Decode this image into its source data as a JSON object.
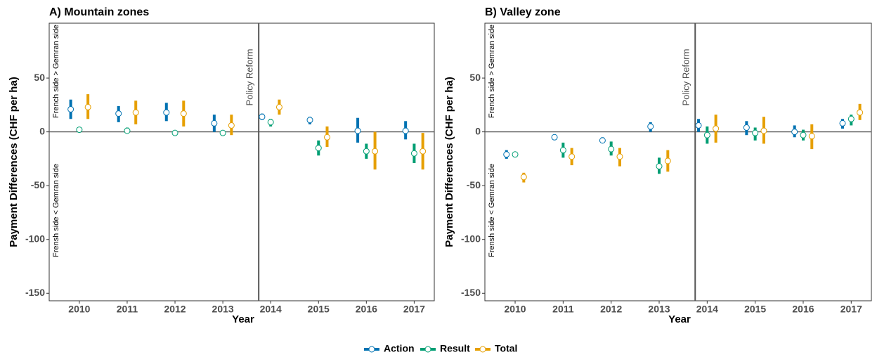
{
  "chart_data": [
    {
      "type": "pointrange",
      "title": "A) Mountain zones",
      "x_label": "Year",
      "y_label": "Payment Differences (CHF per ha)",
      "annotations": [
        "Policy Reform",
        "French side > Gemran side",
        "Frensh side < Gemran side"
      ],
      "categories": [
        "2010",
        "2011",
        "2012",
        "2013",
        "2014",
        "2015",
        "2016",
        "2017"
      ],
      "ylim": [
        -157,
        101
      ],
      "yticks": [
        -150,
        -100,
        -50,
        0,
        50
      ],
      "series": [
        {
          "name": "Action",
          "color": "#0072B2",
          "values": [
            21,
            17,
            18,
            8,
            14,
            11,
            1,
            1
          ],
          "lower": [
            12,
            9,
            10,
            0,
            11,
            7,
            -10,
            -7
          ],
          "upper": [
            30,
            24,
            27,
            16,
            17,
            14,
            13,
            10
          ]
        },
        {
          "name": "Result",
          "color": "#009E73",
          "values": [
            2,
            1,
            -1,
            -1,
            9,
            -15,
            -18,
            -20
          ],
          "lower": [
            1,
            -1,
            -3,
            -2,
            5,
            -22,
            -25,
            -29
          ],
          "upper": [
            4,
            4,
            1,
            1,
            12,
            -8,
            -11,
            -11
          ]
        },
        {
          "name": "Total",
          "color": "#E69F00",
          "values": [
            23,
            18,
            17,
            6,
            23,
            -5,
            -18,
            -18
          ],
          "lower": [
            12,
            7,
            5,
            -3,
            16,
            -14,
            -35,
            -35
          ],
          "upper": [
            35,
            29,
            29,
            16,
            30,
            5,
            0,
            -1
          ]
        }
      ]
    },
    {
      "type": "pointrange",
      "title": "B) Valley zone",
      "x_label": "Year",
      "y_label": "Payment Differences (CHF per ha)",
      "annotations": [
        "Policy Reform",
        "French side > Gemran side",
        "Frensh side < Gemran side"
      ],
      "categories": [
        "2010",
        "2011",
        "2012",
        "2013",
        "2014",
        "2015",
        "2016",
        "2017"
      ],
      "ylim": [
        -157,
        101
      ],
      "yticks": [
        -150,
        -100,
        -50,
        0,
        50
      ],
      "series": [
        {
          "name": "Action",
          "color": "#0072B2",
          "values": [
            -21,
            -5,
            -8,
            5,
            6,
            4,
            0,
            8
          ],
          "lower": [
            -25,
            -7,
            -10,
            0,
            0,
            -3,
            -5,
            3
          ],
          "upper": [
            -17,
            -4,
            -5,
            9,
            12,
            10,
            6,
            12
          ]
        },
        {
          "name": "Result",
          "color": "#009E73",
          "values": [
            -21,
            -17,
            -16,
            -32,
            -3,
            -1,
            -3,
            12
          ],
          "lower": [
            -22,
            -24,
            -22,
            -39,
            -11,
            -8,
            -8,
            6
          ],
          "upper": [
            -20,
            -10,
            -9,
            -24,
            5,
            4,
            2,
            16
          ]
        },
        {
          "name": "Total",
          "color": "#E69F00",
          "values": [
            -42,
            -23,
            -23,
            -27,
            3,
            1,
            -4,
            18
          ],
          "lower": [
            -47,
            -31,
            -32,
            -37,
            -10,
            -11,
            -16,
            11
          ],
          "upper": [
            -38,
            -15,
            -15,
            -17,
            16,
            14,
            7,
            26
          ]
        }
      ]
    }
  ]
}
